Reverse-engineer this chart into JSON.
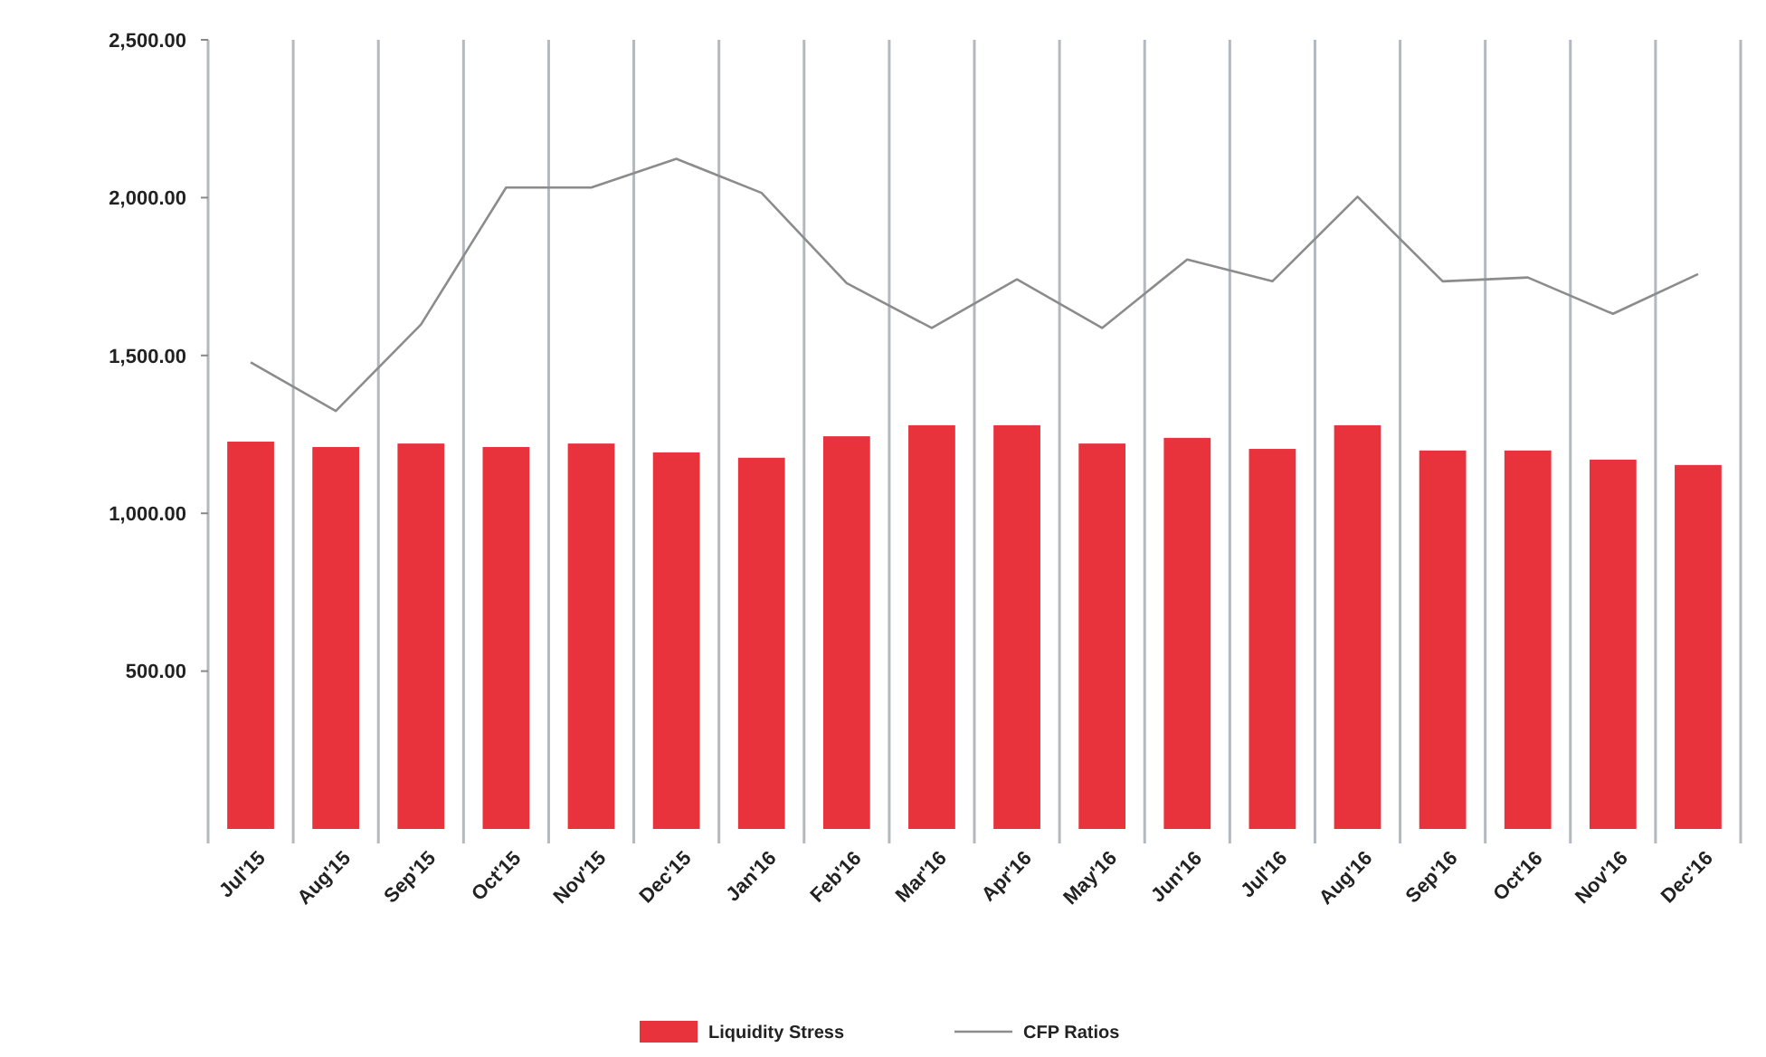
{
  "chart_data": {
    "type": "bar",
    "categories": [
      "Jul'15",
      "Aug'15",
      "Sep'15",
      "Oct'15",
      "Nov'15",
      "Dec'15",
      "Jan'16",
      "Feb'16",
      "Mar'16",
      "Apr'16",
      "May'16",
      "Jun'16",
      "Jul'16",
      "Aug'16",
      "Sep'16",
      "Oct'16",
      "Nov'16",
      "Dec'16"
    ],
    "series": [
      {
        "name": "Liquidity Stress",
        "color": "#e8323c",
        "values": [
          1227,
          1210,
          1221,
          1210,
          1221,
          1193,
          1176,
          1244,
          1279,
          1279,
          1221,
          1239,
          1204,
          1279,
          1199,
          1199,
          1170,
          1153
        ]
      },
      {
        "name": "CFP Ratios",
        "type": "line",
        "color": "#8c8c8c",
        "values": [
          1478,
          1324,
          1598,
          2032,
          2032,
          2123,
          2015,
          1729,
          1587,
          1741,
          1587,
          1804,
          1735,
          2003,
          1735,
          1747,
          1632,
          1758
        ]
      }
    ],
    "ylim": [
      0,
      2500
    ],
    "yticks": [
      {
        "value": 500,
        "label": "500.00"
      },
      {
        "value": 1000,
        "label": "1,000.00"
      },
      {
        "value": 1500,
        "label": "1,500.00"
      },
      {
        "value": 2000,
        "label": "2,000.00"
      },
      {
        "value": 2500,
        "label": "2,500.00"
      }
    ],
    "grid": "x",
    "legend": "bottom",
    "marker": "none",
    "line_style": "solid"
  }
}
